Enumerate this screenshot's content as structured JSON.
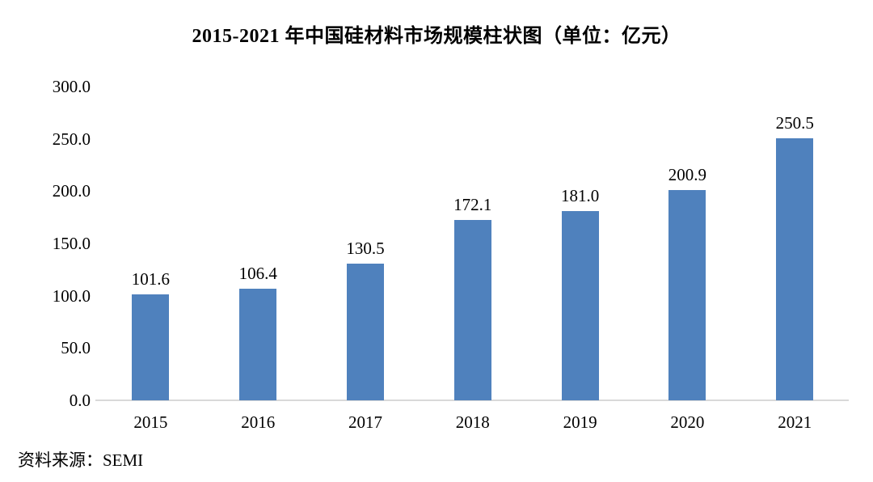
{
  "chart_data": {
    "type": "bar",
    "title": "2015-2021 年中国硅材料市场规模柱状图（单位：亿元）",
    "categories": [
      "2015",
      "2016",
      "2017",
      "2018",
      "2019",
      "2020",
      "2021"
    ],
    "values": [
      101.6,
      106.4,
      130.5,
      172.1,
      181.0,
      200.9,
      250.5
    ],
    "value_labels": [
      "101.6",
      "106.4",
      "130.5",
      "172.1",
      "181.0",
      "200.9",
      "250.5"
    ],
    "y_ticks": [
      "300.0",
      "250.0",
      "200.0",
      "150.0",
      "100.0",
      "50.0",
      "0.0"
    ],
    "ylim": [
      0,
      300
    ],
    "xlabel": "",
    "ylabel": "",
    "grid": false,
    "legend": false,
    "bar_color": "#4F81BD",
    "axis_line_color": "#D9D9D9",
    "text_color": "#000000"
  },
  "source": {
    "label": "资料来源：SEMI"
  }
}
